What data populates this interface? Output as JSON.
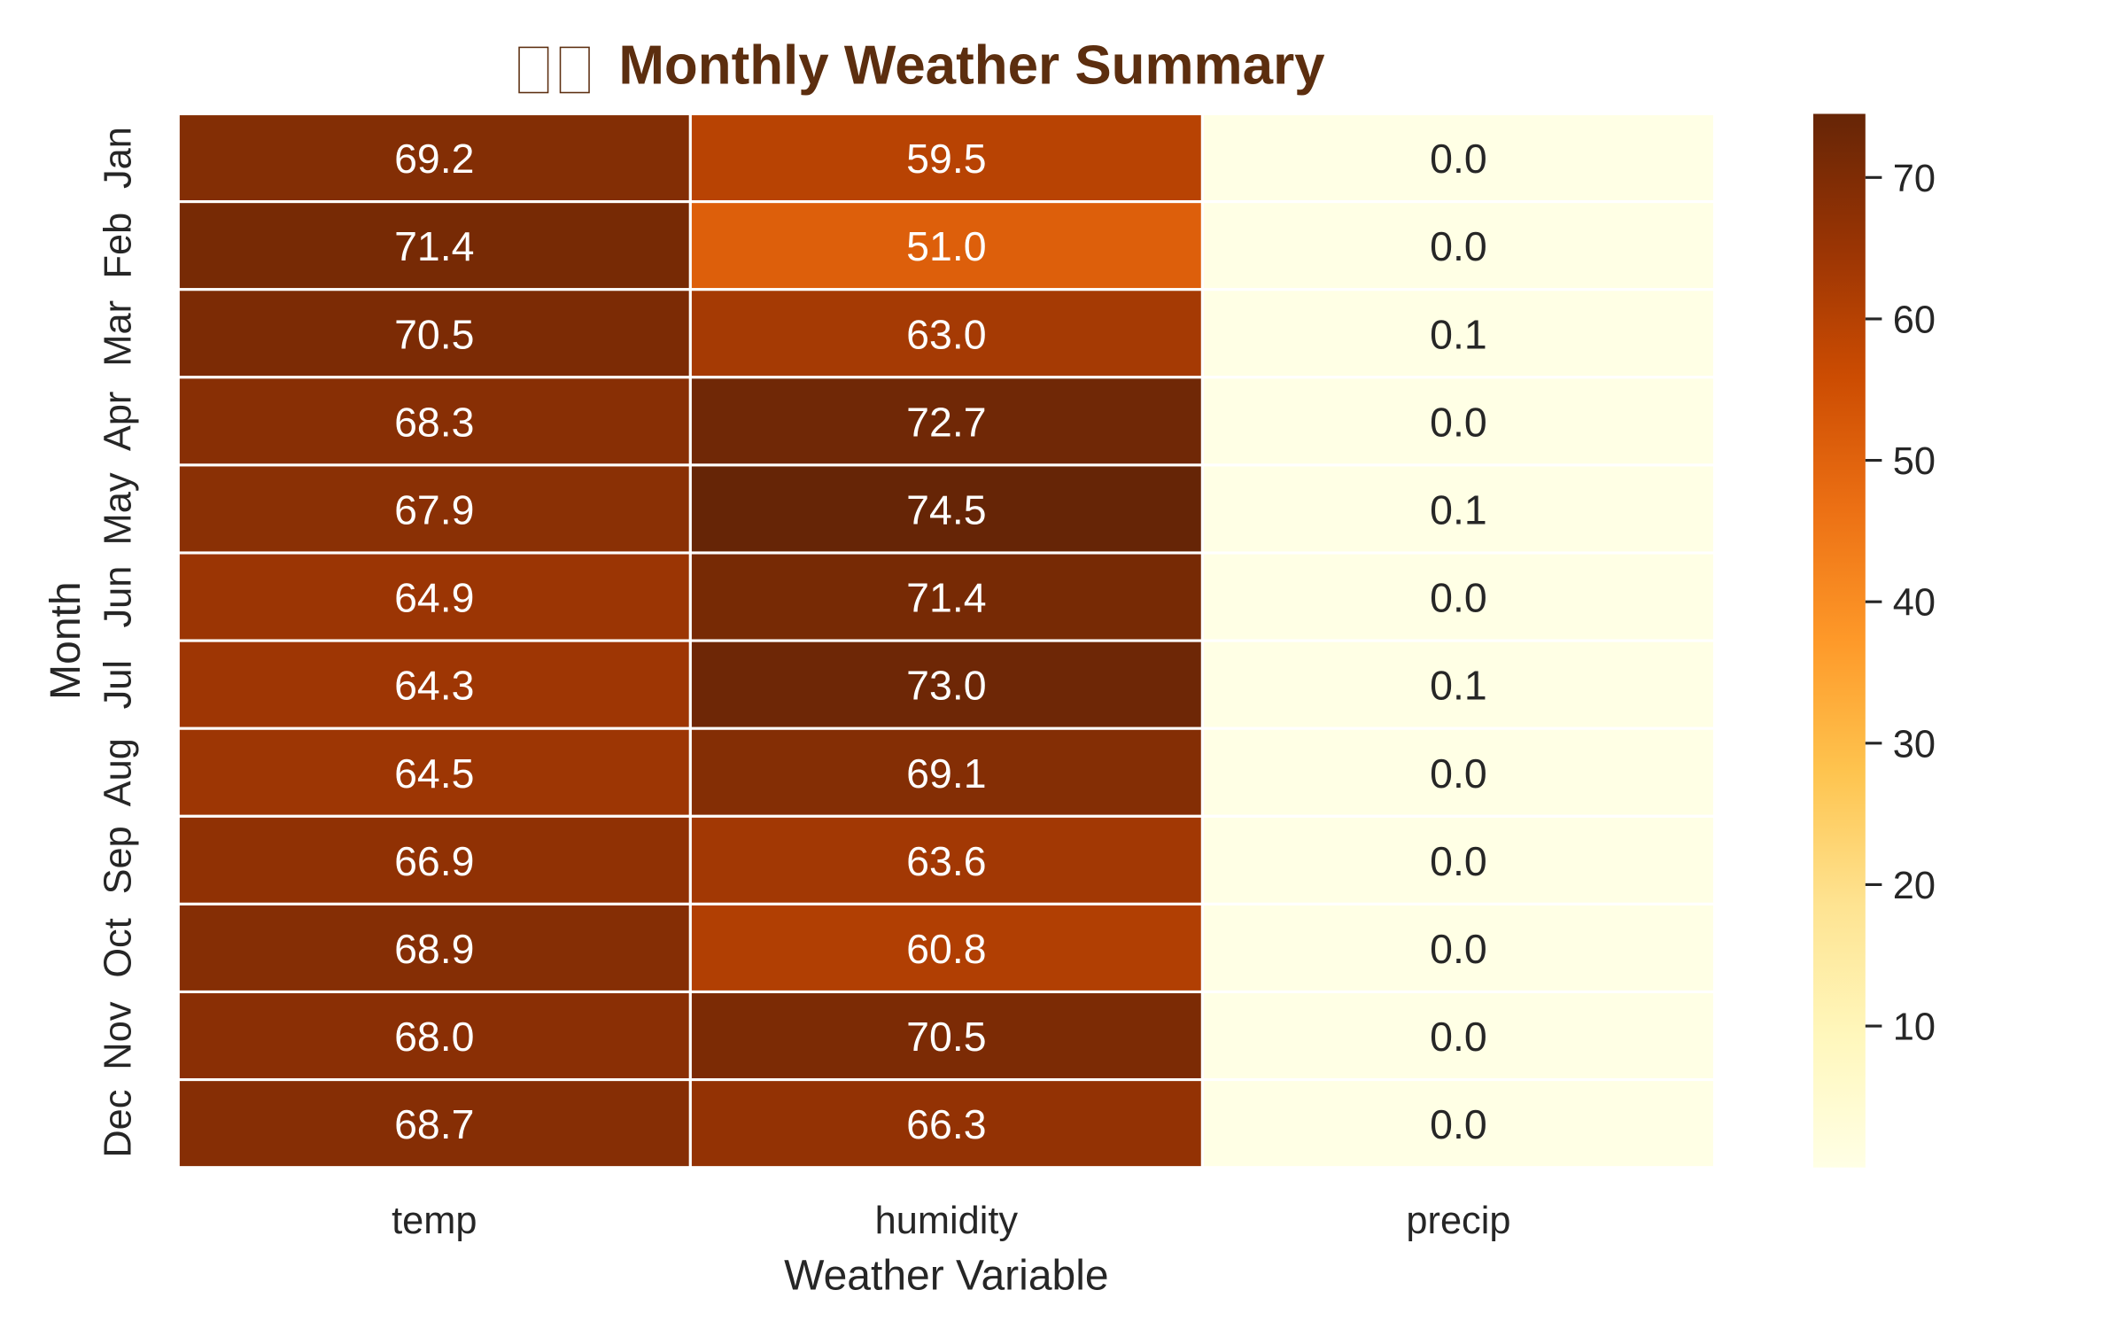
{
  "chart_data": {
    "type": "heatmap",
    "title": "Monthly Weather Summary",
    "title_glyphs": [
      "□",
      "□"
    ],
    "xlabel": "Weather Variable",
    "ylabel": "Month",
    "columns": [
      "temp",
      "humidity",
      "precip"
    ],
    "rows": [
      "Jan",
      "Feb",
      "Mar",
      "Apr",
      "May",
      "Jun",
      "Jul",
      "Aug",
      "Sep",
      "Oct",
      "Nov",
      "Dec"
    ],
    "values": [
      [
        69.2,
        59.5,
        0.0
      ],
      [
        71.4,
        51.0,
        0.0
      ],
      [
        70.5,
        63.0,
        0.1
      ],
      [
        68.3,
        72.7,
        0.0
      ],
      [
        67.9,
        74.5,
        0.1
      ],
      [
        64.9,
        71.4,
        0.0
      ],
      [
        64.3,
        73.0,
        0.1
      ],
      [
        64.5,
        69.1,
        0.0
      ],
      [
        66.9,
        63.6,
        0.0
      ],
      [
        68.9,
        60.8,
        0.0
      ],
      [
        68.0,
        70.5,
        0.0
      ],
      [
        68.7,
        66.3,
        0.0
      ]
    ],
    "value_format": "one decimal",
    "colormap": "YlOrBr",
    "color_range": [
      0.0,
      74.5
    ],
    "colorbar_ticks": [
      10,
      20,
      30,
      40,
      50,
      60,
      70
    ],
    "grid": false,
    "cell_border_color": "#ffffff",
    "title_color": "#5c2e0f"
  }
}
